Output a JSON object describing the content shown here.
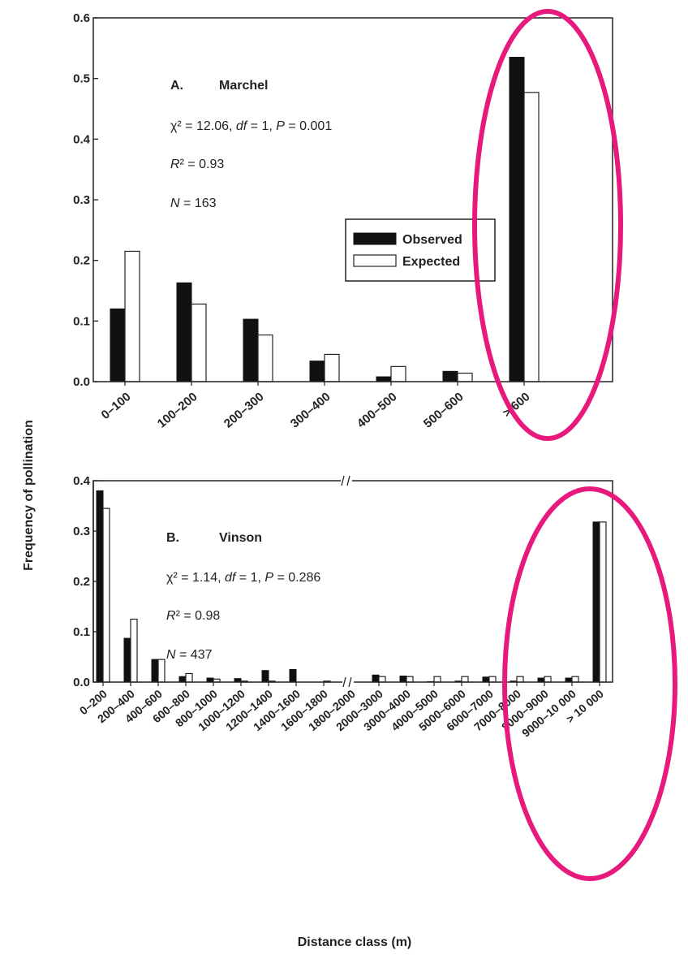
{
  "ylabel": "Frequency of pollination",
  "xlabel": "Distance class (m)",
  "colors": {
    "observed": "#111111",
    "expected": "#ffffff",
    "highlight": "#e8197d"
  },
  "legend": {
    "observed": "Observed",
    "expected": "Expected"
  },
  "chart_data": [
    {
      "type": "bar",
      "panel": "A.",
      "site": "Marchel",
      "stats": {
        "chi": "χ² = 12.06, ",
        "df": "df",
        "df_rest": " = 1, ",
        "p": "P",
        "p_rest": " = 0.001",
        "r2": "R",
        "r2_rest": "² = 0.93",
        "n": "N",
        "n_rest": " = 163"
      },
      "categories": [
        "0–100",
        "100–200",
        "200–300",
        "300–400",
        "400–500",
        "500–600",
        "> 600"
      ],
      "series": [
        {
          "name": "Observed",
          "values": [
            0.12,
            0.163,
            0.103,
            0.034,
            0.008,
            0.017,
            0.535
          ]
        },
        {
          "name": "Expected",
          "values": [
            0.215,
            0.128,
            0.077,
            0.045,
            0.025,
            0.014,
            0.477
          ]
        }
      ],
      "ylim": [
        0,
        0.6
      ],
      "yticks": [
        "0.0",
        "0.1",
        "0.2",
        "0.3",
        "0.4",
        "0.5",
        "0.6"
      ]
    },
    {
      "type": "bar",
      "panel": "B.",
      "site": "Vinson",
      "stats": {
        "chi": "χ² = 1.14, ",
        "df": "df",
        "df_rest": " = 1, ",
        "p": "P",
        "p_rest": " = 0.286",
        "r2": "R",
        "r2_rest": "² = 0.98",
        "n": "N",
        "n_rest": " = 437"
      },
      "categories": [
        "0–200",
        "200–400",
        "400–600",
        "600–800",
        "800–1000",
        "1000–1200",
        "1200–1400",
        "1400–1600",
        "1600–1800",
        "1800–2000",
        "2000–3000",
        "3000–4000",
        "4000–5000",
        "5000–6000",
        "6000–7000",
        "7000–8000",
        "8000–9000",
        "9000–10 000",
        "> 10 000"
      ],
      "series": [
        {
          "name": "Observed",
          "values": [
            0.38,
            0.087,
            0.045,
            0.011,
            0.008,
            0.007,
            0.023,
            0.025,
            0.0,
            0.0,
            0.014,
            0.012,
            0.001,
            0.002,
            0.01,
            0.002,
            0.008,
            0.008,
            0.318
          ]
        },
        {
          "name": "Expected",
          "values": [
            0.345,
            0.125,
            0.045,
            0.017,
            0.006,
            0.002,
            0.002,
            0.0,
            0.002,
            0.0,
            0.011,
            0.011,
            0.011,
            0.011,
            0.011,
            0.011,
            0.011,
            0.011,
            0.318
          ]
        }
      ],
      "ylim": [
        0,
        0.4
      ],
      "yticks": [
        "0.0",
        "0.1",
        "0.2",
        "0.3",
        "0.4"
      ]
    }
  ]
}
